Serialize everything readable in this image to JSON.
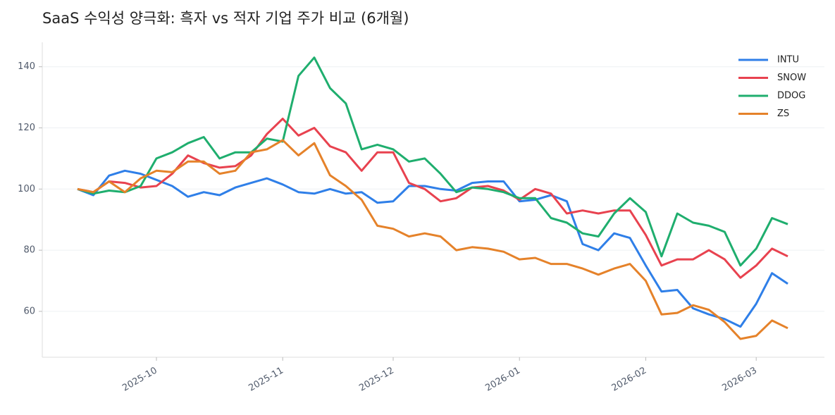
{
  "chart_data": {
    "type": "line",
    "title": "SaaS 수익성 양극화: 흑자 vs 적자 기업 주가 비교 (6개월)",
    "categories": [
      null,
      null,
      null,
      null,
      null,
      "2025-10",
      null,
      null,
      null,
      null,
      null,
      null,
      null,
      "2025-11",
      null,
      null,
      null,
      null,
      null,
      null,
      "2025-12",
      null,
      null,
      null,
      null,
      null,
      null,
      null,
      "2026-01",
      null,
      null,
      null,
      null,
      null,
      null,
      null,
      "2026-02",
      null,
      null,
      null,
      null,
      null,
      null,
      "2026-03",
      null,
      null
    ],
    "series": [
      {
        "name": "INTU",
        "color": "#2f7fe8",
        "values": [
          100,
          98,
          104.4,
          106,
          105,
          103,
          101,
          97.5,
          99,
          98,
          100.5,
          102,
          103.5,
          101.5,
          99,
          98.5,
          100,
          98.5,
          99,
          95.5,
          96,
          101,
          101,
          100,
          99.5,
          102,
          102.5,
          102.5,
          96,
          96.5,
          98,
          96,
          82,
          80,
          85.5,
          84,
          75,
          66.5,
          67,
          61,
          59,
          57.5,
          55,
          62.5,
          72.5,
          69
        ]
      },
      {
        "name": "SNOW",
        "color": "#e8424f",
        "values": [
          100,
          99,
          102.5,
          102,
          100.5,
          101,
          105,
          111,
          108.5,
          107,
          107.5,
          111,
          118,
          123,
          117.5,
          120,
          114,
          112,
          106,
          112,
          112,
          102,
          100,
          96,
          97,
          100.5,
          101,
          99.5,
          96.5,
          100,
          98.5,
          92,
          93,
          92,
          93,
          93,
          85,
          75,
          77,
          77,
          80,
          77,
          71,
          75,
          80.5,
          78
        ]
      },
      {
        "name": "DDOG",
        "color": "#1fae6e",
        "values": [
          100,
          98.5,
          99.5,
          99,
          101,
          110,
          112,
          115,
          117,
          110,
          112,
          112,
          116.5,
          115.5,
          137,
          143,
          133,
          128,
          113,
          114.5,
          113,
          109,
          110,
          105,
          99,
          100.5,
          100,
          99,
          97,
          97,
          90.5,
          89,
          85.5,
          84.5,
          92,
          97,
          92.5,
          78,
          92,
          89,
          88,
          86,
          75,
          80.5,
          90.5,
          88.5
        ]
      },
      {
        "name": "ZS",
        "color": "#e5822a",
        "values": [
          100,
          99,
          102.5,
          99,
          103.5,
          106,
          105.5,
          109,
          109,
          105,
          106,
          112,
          113,
          116,
          111,
          115,
          104.5,
          101,
          96.5,
          88,
          87,
          84.5,
          85.5,
          84.5,
          80,
          81,
          80.5,
          79.5,
          77,
          77.5,
          75.5,
          75.5,
          74,
          72,
          74,
          75.5,
          70,
          59,
          59.5,
          62,
          60.5,
          56.5,
          51,
          52,
          57,
          54.5
        ]
      }
    ],
    "ylim": [
      45,
      148
    ],
    "yticks": [
      60,
      80,
      100,
      120,
      140
    ],
    "grid": true,
    "legend": "upper right"
  }
}
